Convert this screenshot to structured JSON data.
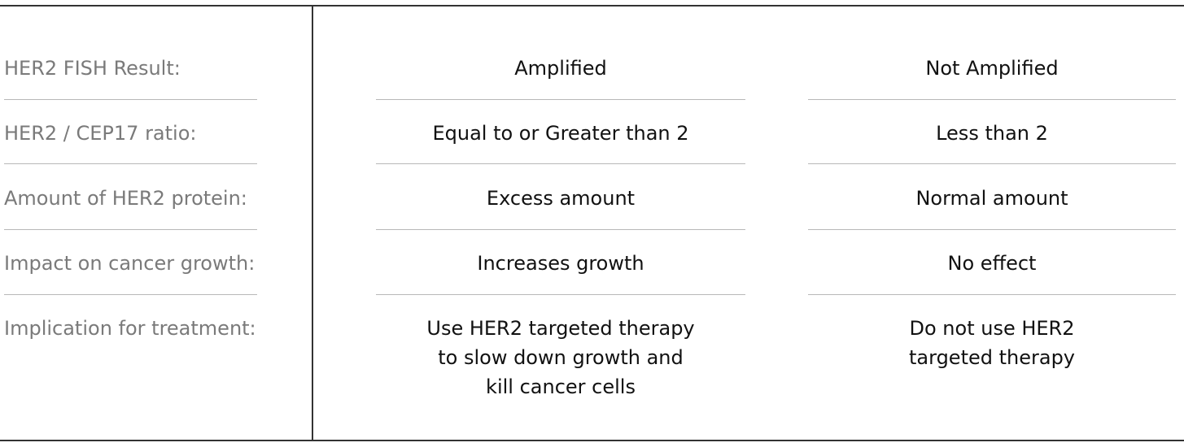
{
  "rows": [
    {
      "label": "HER2 FISH Result:",
      "amplified": "Amplified",
      "not_amplified": "Not Amplified"
    },
    {
      "label": "HER2 / CEP17 ratio:",
      "amplified": "Equal to or Greater than 2",
      "not_amplified": "Less than 2"
    },
    {
      "label": "Amount of HER2 protein:",
      "amplified": "Excess amount",
      "not_amplified": "Normal amount"
    },
    {
      "label": "Impact on cancer growth:",
      "amplified": "Increases growth",
      "not_amplified": "No effect"
    },
    {
      "label": "Implication for treatment:",
      "amplified": "Use HER2 targeted therapy\nto slow down growth and\nkill cancer cells",
      "not_amplified": "Do not use HER2\ntargeted therapy"
    }
  ]
}
